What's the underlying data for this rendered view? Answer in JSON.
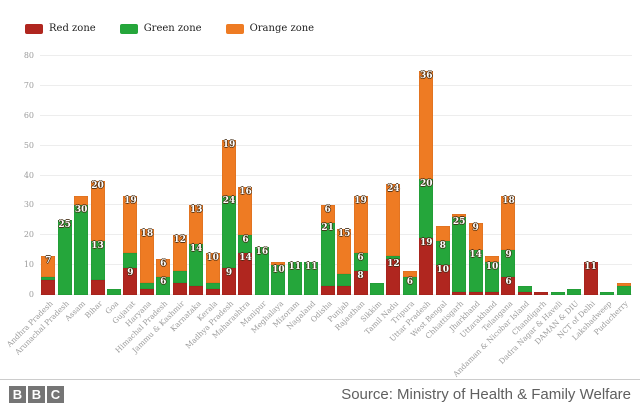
{
  "legend": [
    {
      "label": "Red zone",
      "color": "#b0261f"
    },
    {
      "label": "Green zone",
      "color": "#25a63b"
    },
    {
      "label": "Orange zone",
      "color": "#ee7b23"
    }
  ],
  "footer": {
    "logo_letters": [
      "B",
      "B",
      "C"
    ],
    "source": "Source: Ministry of Health & Family Welfare"
  },
  "chart_data": {
    "type": "bar",
    "stacked": true,
    "title": "",
    "xlabel": "",
    "ylabel": "",
    "ylim": [
      0,
      80
    ],
    "yticks": [
      0,
      10,
      20,
      30,
      40,
      50,
      60,
      70,
      80
    ],
    "grid": true,
    "legend_position": "top-left",
    "bar_label_min_value": 6,
    "categories": [
      "Andhra Pradesh",
      "Arunachal Pradesh",
      "Assam",
      "Bihar",
      "Goa",
      "Gujarat",
      "Haryana",
      "Himachal Pradesh",
      "Jammu & Kashmir",
      "Karnataka",
      "Kerala",
      "Madhya Pradesh",
      "Maharashtra",
      "Manipur",
      "Meghalaya",
      "Mizoram",
      "Nagaland",
      "Odisha",
      "Punjab",
      "Rajasthan",
      "Sikkim",
      "Tamil Nadu",
      "Tripura",
      "Uttar Pradesh",
      "West Bengal",
      "Chhattisgarh",
      "Jharkhand",
      "Uttarakhand",
      "Telangana",
      "Andaman & Nicobar Island",
      "Chandigarh",
      "Dadra Nagar & Haveli",
      "DAMAN & DIU",
      "NCT of Delhi",
      "Lakshadweep",
      "Puducherry"
    ],
    "series": [
      {
        "name": "Red zone",
        "key": "red",
        "color": "#b0261f",
        "stack_order": "bottom",
        "values": [
          5,
          0,
          0,
          5,
          0,
          9,
          2,
          0,
          4,
          3,
          2,
          9,
          14,
          0,
          0,
          0,
          0,
          3,
          3,
          8,
          0,
          12,
          0,
          19,
          10,
          1,
          1,
          1,
          6,
          1,
          1,
          0,
          0,
          11,
          0,
          0
        ]
      },
      {
        "name": "Green zone",
        "key": "green",
        "color": "#25a63b",
        "stack_order": "middle",
        "values": [
          1,
          25,
          30,
          13,
          2,
          5,
          2,
          6,
          4,
          14,
          2,
          24,
          6,
          16,
          10,
          11,
          11,
          21,
          4,
          6,
          4,
          1,
          6,
          20,
          8,
          25,
          14,
          10,
          9,
          2,
          0,
          1,
          2,
          0,
          1,
          3
        ]
      },
      {
        "name": "Orange zone",
        "key": "orange",
        "color": "#ee7b23",
        "stack_order": "top",
        "values": [
          7,
          0,
          3,
          20,
          0,
          19,
          18,
          6,
          12,
          13,
          10,
          19,
          16,
          0,
          1,
          0,
          0,
          6,
          15,
          19,
          0,
          24,
          2,
          36,
          5,
          1,
          9,
          2,
          18,
          0,
          0,
          0,
          0,
          0,
          0,
          1
        ]
      }
    ]
  }
}
